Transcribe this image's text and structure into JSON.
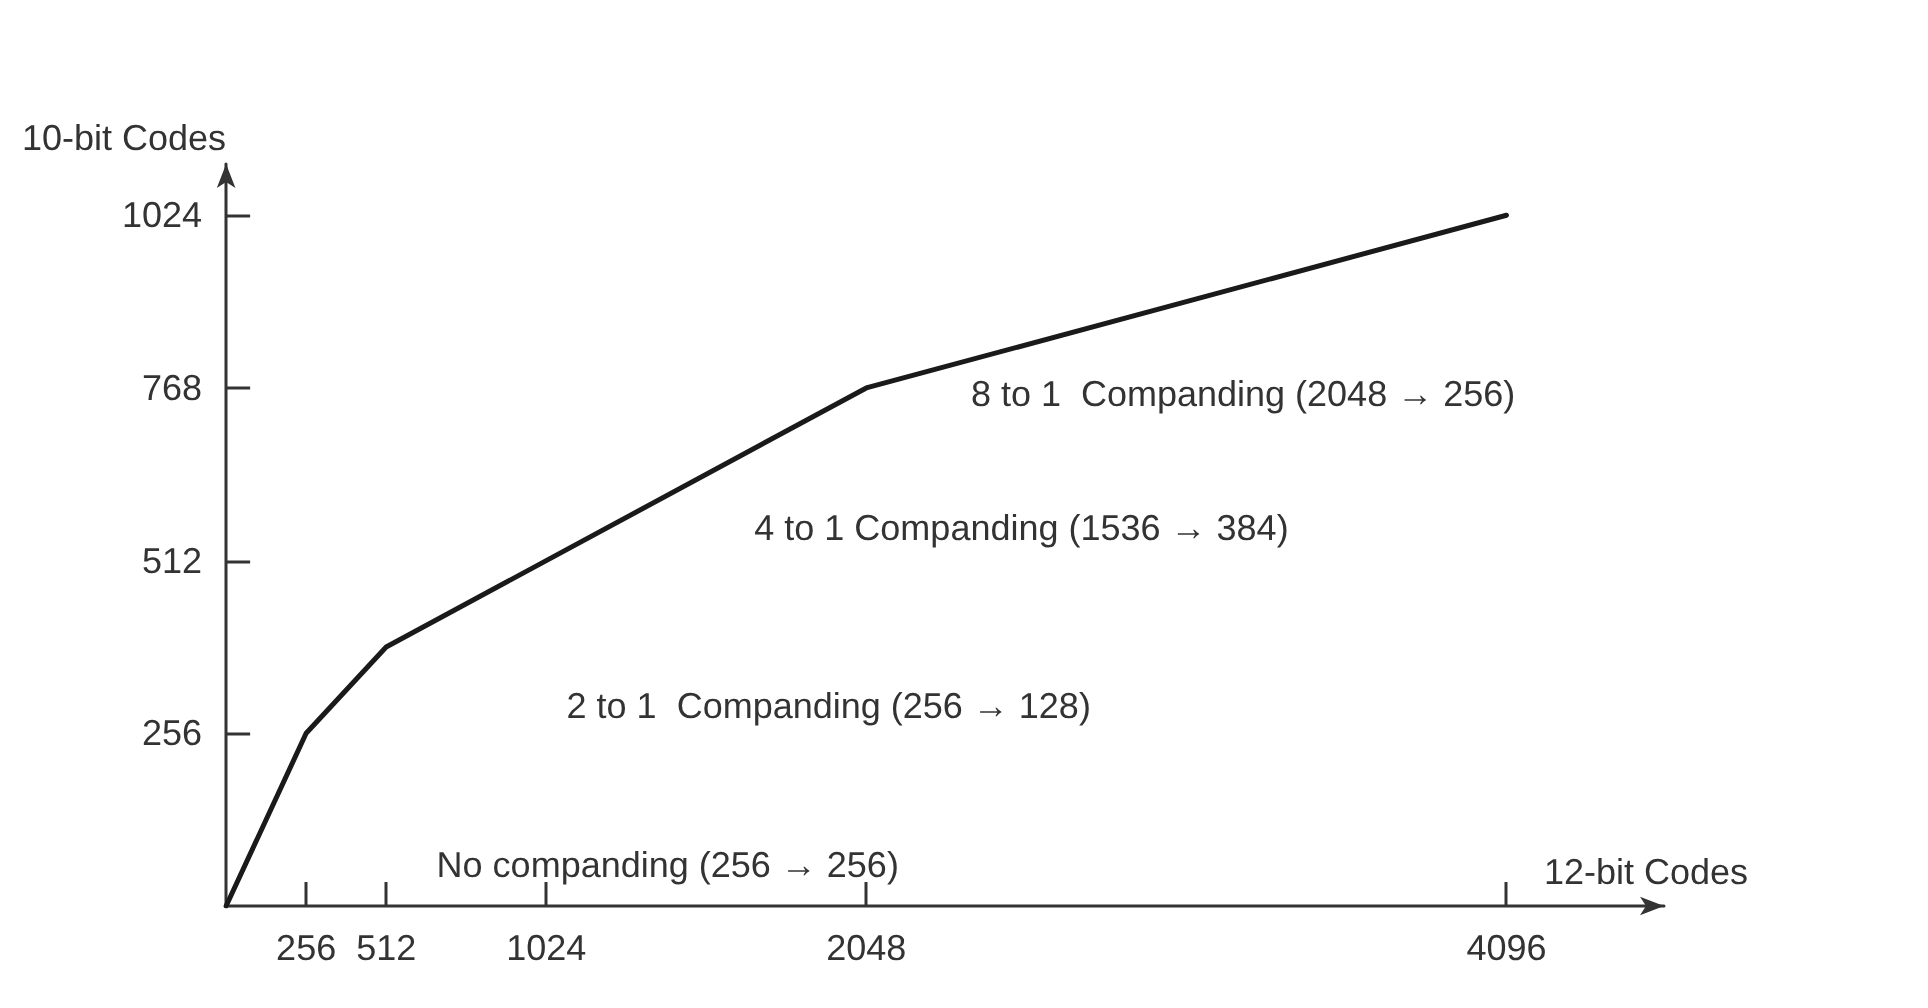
{
  "chart_data": {
    "type": "line",
    "xlabel": "12-bit Codes",
    "ylabel": "10-bit Codes",
    "x": [
      0,
      256,
      512,
      2048,
      4096
    ],
    "series": [
      {
        "color": "#1a1a1a",
        "values": [
          0,
          256,
          384,
          768,
          1024
        ]
      }
    ],
    "xlim": [
      0,
      4600
    ],
    "xticks": [
      256,
      512,
      1024,
      2048,
      4096
    ],
    "ylim": [
      0,
      1100
    ],
    "yticks": [
      256,
      512,
      768,
      1024
    ],
    "grid": false,
    "marker": "none",
    "line_style": "solid",
    "annotations": [
      "No companding (256 → 256)",
      "2 to 1  Companding (256 → 128)",
      "4 to 1 Companding (1536 → 384)",
      "8 to 1  Companding (2048 → 256)"
    ]
  }
}
